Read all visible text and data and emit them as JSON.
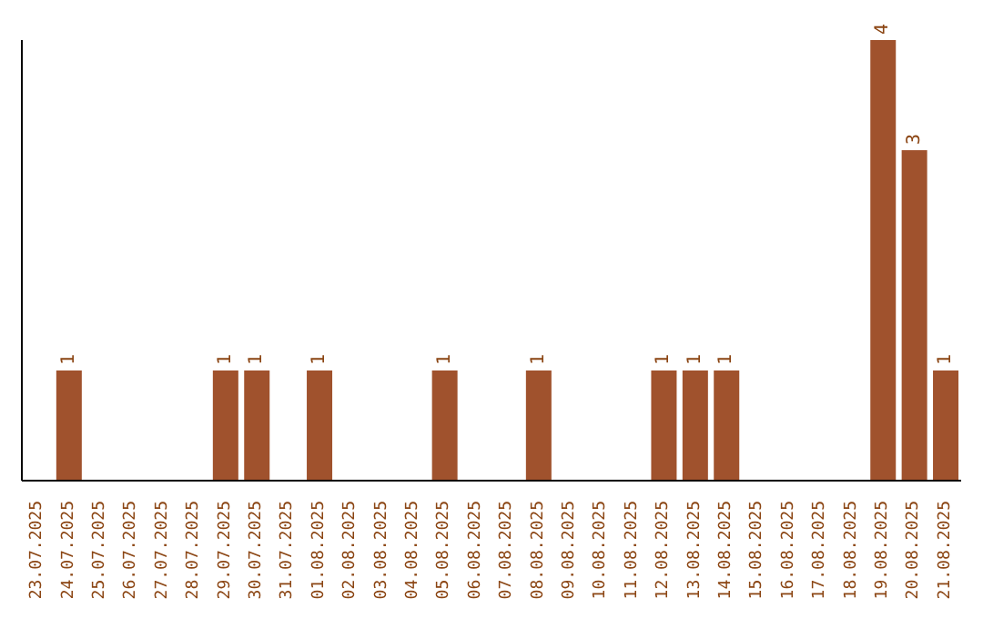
{
  "chart_data": {
    "type": "bar",
    "categories": [
      "23.07.2025",
      "24.07.2025",
      "25.07.2025",
      "26.07.2025",
      "27.07.2025",
      "28.07.2025",
      "29.07.2025",
      "30.07.2025",
      "31.07.2025",
      "01.08.2025",
      "02.08.2025",
      "03.08.2025",
      "04.08.2025",
      "05.08.2025",
      "06.08.2025",
      "07.08.2025",
      "08.08.2025",
      "09.08.2025",
      "10.08.2025",
      "11.08.2025",
      "12.08.2025",
      "13.08.2025",
      "14.08.2025",
      "15.08.2025",
      "16.08.2025",
      "17.08.2025",
      "18.08.2025",
      "19.08.2025",
      "20.08.2025",
      "21.08.2025"
    ],
    "values": [
      null,
      1,
      null,
      null,
      null,
      null,
      1,
      1,
      null,
      1,
      null,
      null,
      null,
      1,
      null,
      null,
      1,
      null,
      null,
      null,
      1,
      1,
      1,
      null,
      null,
      null,
      null,
      4,
      3,
      1
    ],
    "color": "#a0522d",
    "data_labels": true
  }
}
